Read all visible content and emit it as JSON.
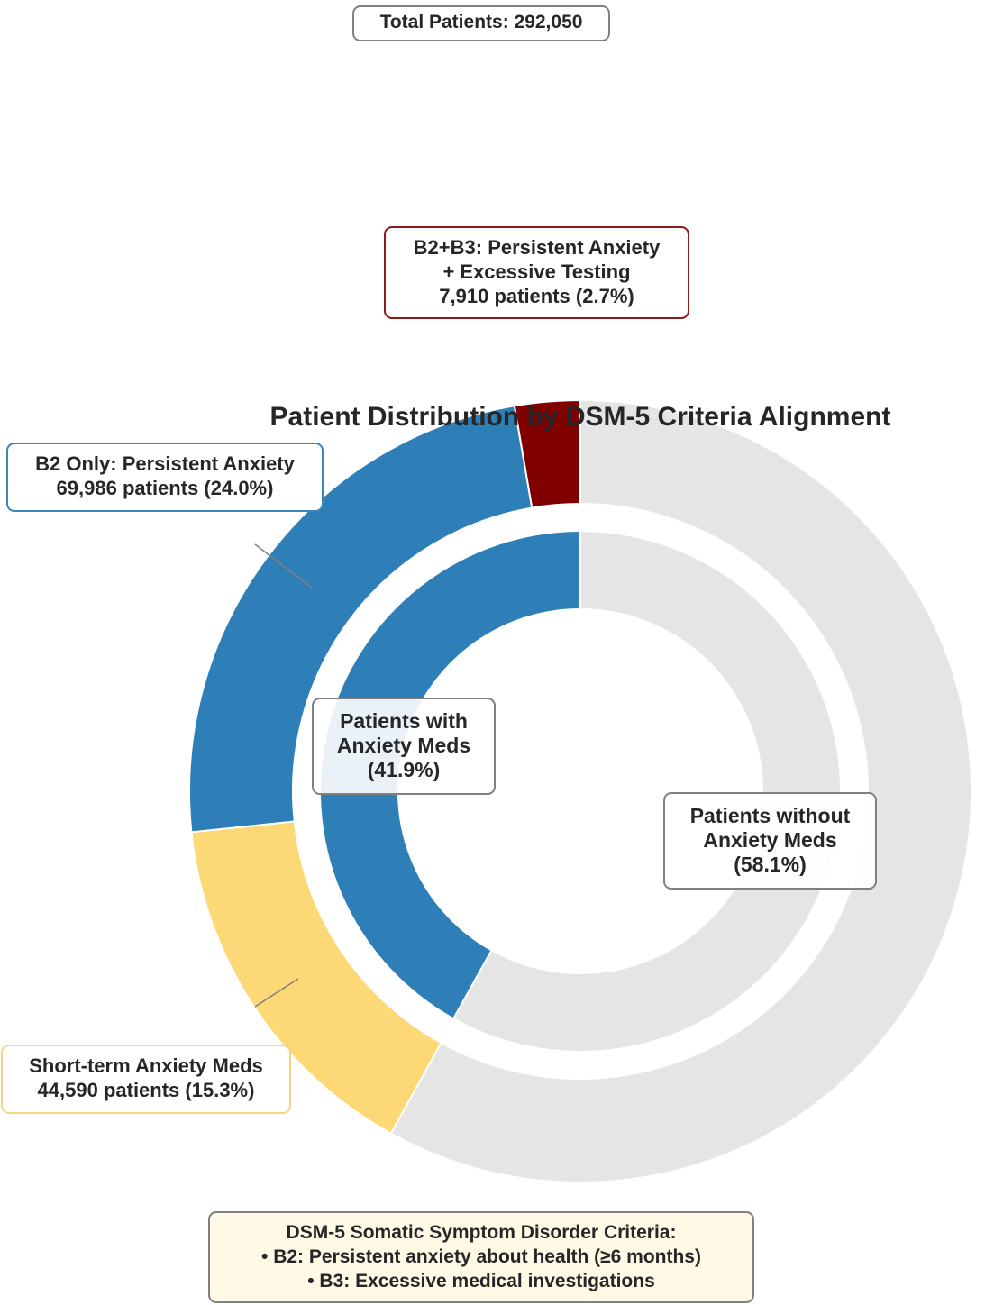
{
  "chart_data": {
    "type": "pie",
    "title": "Patient Distribution by DSM-5 Criteria Alignment",
    "total_label": "Total Patients: 292,050",
    "outer_ring": [
      {
        "name": "B2+B3: Persistent Anxiety + Excessive Testing",
        "value": 7910,
        "percent": 2.7,
        "color": "#800000",
        "label_lines": [
          "B2+B3: Persistent Anxiety",
          "+ Excessive Testing",
          "7,910 patients (2.7%)"
        ]
      },
      {
        "name": "B2 Only: Persistent Anxiety",
        "value": 69986,
        "percent": 24.0,
        "color": "#2e7eb8",
        "label_lines": [
          "B2 Only: Persistent Anxiety",
          "69,986 patients (24.0%)"
        ]
      },
      {
        "name": "Short-term Anxiety Meds",
        "value": 44590,
        "percent": 15.3,
        "color": "#fdd876",
        "label_lines": [
          "Short-term Anxiety Meds",
          "44,590 patients (15.3%)"
        ]
      },
      {
        "name": "Patients without Anxiety Meds",
        "value": 169564,
        "percent": 58.1,
        "color": "#e5e5e5",
        "label_lines": []
      }
    ],
    "inner_ring": [
      {
        "name": "Patients with Anxiety Meds",
        "percent": 41.9,
        "color": "#2e7eb8",
        "label_lines": [
          "Patients with",
          "Anxiety Meds",
          "(41.9%)"
        ]
      },
      {
        "name": "Patients without Anxiety Meds",
        "percent": 58.1,
        "color": "#e5e5e5",
        "label_lines": [
          "Patients without",
          "Anxiety Meds",
          "(58.1%)"
        ]
      }
    ],
    "criteria_note": {
      "lines": [
        "DSM-5 Somatic Symptom Disorder Criteria:",
        "• B2: Persistent anxiety about health (≥6 months)",
        "• B3: Excessive medical investigations"
      ]
    }
  }
}
